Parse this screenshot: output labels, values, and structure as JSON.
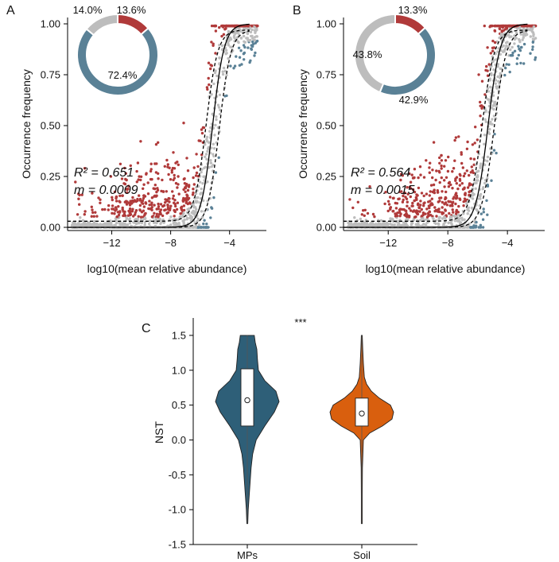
{
  "colors": {
    "above": "#b03a3a",
    "below": "#5a8196",
    "neutral": "#bdbdbd",
    "violin_mps": "#2e5f78",
    "violin_soil": "#d95f0e"
  },
  "chart_data": [
    {
      "id": "A",
      "type": "scatter",
      "panel_label": "A",
      "xlabel": "log10(mean relative abundance)",
      "ylabel": "Occurrence frequency",
      "xlim": [
        -15,
        -1.5
      ],
      "ylim": [
        0,
        1
      ],
      "x_ticks": [
        -12,
        -8,
        -4
      ],
      "x_tick_labels": [
        "−12",
        "−8",
        "−4"
      ],
      "y_ticks": [
        0,
        0.25,
        0.5,
        0.75,
        1.0
      ],
      "y_tick_labels": [
        "0.00",
        "0.25",
        "0.50",
        "0.75",
        "1.00"
      ],
      "fit": {
        "midpoint": -5.15,
        "slope": 1.15,
        "ci_upper_shift": 0.45,
        "ci_lower_shift": -0.45,
        "ci_floor": 0.03,
        "ci_ceiling": 0.97
      },
      "stats": {
        "r2": "R² = 0.651",
        "m": "m = 0.0009"
      },
      "pie": {
        "slices": [
          {
            "label": "13.6%",
            "value": 13.6,
            "group": "above"
          },
          {
            "label": "72.4%",
            "value": 72.4,
            "group": "below"
          },
          {
            "label": "14.0%",
            "value": 14.0,
            "group": "neutral"
          }
        ]
      }
    },
    {
      "id": "B",
      "type": "scatter",
      "panel_label": "B",
      "xlabel": "log10(mean relative abundance)",
      "ylabel": "Occurrence frequency",
      "xlim": [
        -15,
        -1.5
      ],
      "ylim": [
        0,
        1
      ],
      "x_ticks": [
        -12,
        -8,
        -4
      ],
      "x_tick_labels": [
        "−12",
        "−8",
        "−4"
      ],
      "y_ticks": [
        0,
        0.25,
        0.5,
        0.75,
        1.0
      ],
      "y_tick_labels": [
        "0.00",
        "0.25",
        "0.50",
        "0.75",
        "1.00"
      ],
      "fit": {
        "midpoint": -5.3,
        "slope": 1.1,
        "ci_upper_shift": 0.4,
        "ci_lower_shift": -0.4,
        "ci_floor": 0.03,
        "ci_ceiling": 0.97
      },
      "stats": {
        "r2": "R² = 0.564",
        "m": "m = 0.0015"
      },
      "pie": {
        "slices": [
          {
            "label": "13.3%",
            "value": 13.3,
            "group": "above"
          },
          {
            "label": "42.9%",
            "value": 42.9,
            "group": "below"
          },
          {
            "label": "43.8%",
            "value": 43.8,
            "group": "neutral"
          }
        ]
      }
    },
    {
      "id": "C",
      "type": "violin",
      "panel_label": "C",
      "ylabel": "NST",
      "ylim": [
        -1.5,
        1.75
      ],
      "y_ticks": [
        -1.5,
        -1.0,
        -0.5,
        0.0,
        0.5,
        1.0,
        1.5
      ],
      "y_tick_labels": [
        "-1.5",
        "-1.0",
        "-0.5",
        "0.0",
        "0.5",
        "1.0",
        "1.5"
      ],
      "significance": "***",
      "categories": [
        "MPs",
        "Soil"
      ],
      "groups": [
        {
          "name": "MPs",
          "color_key": "violin_mps",
          "min": -1.2,
          "max": 1.5,
          "q1": 0.2,
          "median": 0.57,
          "q3": 1.02,
          "mean": 0.57,
          "density": [
            [
              -1.2,
              0.0
            ],
            [
              -1.0,
              0.03
            ],
            [
              -0.8,
              0.06
            ],
            [
              -0.6,
              0.09
            ],
            [
              -0.4,
              0.12
            ],
            [
              -0.2,
              0.17
            ],
            [
              0.0,
              0.28
            ],
            [
              0.2,
              0.55
            ],
            [
              0.4,
              0.85
            ],
            [
              0.55,
              1.0
            ],
            [
              0.7,
              0.9
            ],
            [
              0.85,
              0.55
            ],
            [
              1.0,
              0.35
            ],
            [
              1.15,
              0.32
            ],
            [
              1.3,
              0.3
            ],
            [
              1.4,
              0.25
            ],
            [
              1.5,
              0.22
            ]
          ]
        },
        {
          "name": "Soil",
          "color_key": "violin_soil",
          "min": -1.2,
          "max": 1.5,
          "q1": 0.2,
          "median": 0.38,
          "q3": 0.6,
          "mean": 0.38,
          "density": [
            [
              -1.2,
              0.0
            ],
            [
              -0.8,
              0.01
            ],
            [
              -0.4,
              0.02
            ],
            [
              0.0,
              0.05
            ],
            [
              0.1,
              0.25
            ],
            [
              0.2,
              0.65
            ],
            [
              0.3,
              0.95
            ],
            [
              0.4,
              1.0
            ],
            [
              0.5,
              0.9
            ],
            [
              0.6,
              0.55
            ],
            [
              0.7,
              0.3
            ],
            [
              0.8,
              0.15
            ],
            [
              0.9,
              0.08
            ],
            [
              1.1,
              0.05
            ],
            [
              1.3,
              0.03
            ],
            [
              1.5,
              0.0
            ]
          ]
        }
      ]
    }
  ]
}
